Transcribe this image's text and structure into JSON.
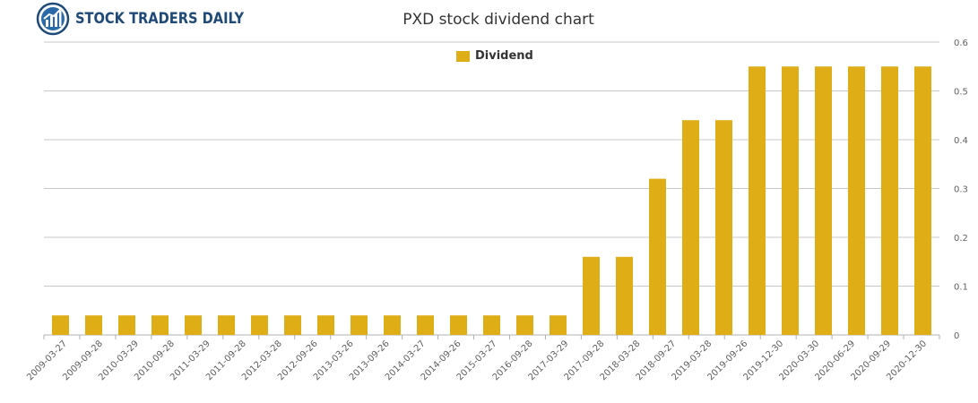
{
  "brand": {
    "name": "STOCK TRADERS DAILY"
  },
  "colors": {
    "bar": "#dfad16",
    "grid": "#c8c8c8",
    "axis": "#b0b0b0",
    "logo": "#1f4a78"
  },
  "chart_data": {
    "type": "bar",
    "title": "PXD stock dividend chart",
    "xlabel": "",
    "ylabel": "",
    "ylim": [
      0,
      0.6
    ],
    "yticks": [
      "0",
      "0.1",
      "0.2",
      "0.3",
      "0.4",
      "0.5",
      "0.6"
    ],
    "grid": true,
    "legend_position": "top-center",
    "categories": [
      "2009-03-27",
      "2009-09-28",
      "2010-03-29",
      "2010-09-28",
      "2011-03-29",
      "2011-09-28",
      "2012-03-28",
      "2012-09-26",
      "2013-03-26",
      "2013-09-26",
      "2014-03-27",
      "2014-09-26",
      "2015-03-27",
      "2015-09-28",
      "2016-03-29",
      "2016-09-28",
      "2017-03-29",
      "2017-09-28",
      "2018-03-28",
      "2018-09-27",
      "2019-03-28",
      "2019-09-26",
      "2019-12-30",
      "2020-03-30",
      "2020-06-29",
      "2020-09-29",
      "2020-12-30"
    ],
    "xticks": [
      "2009-03-27",
      "2009-09-28",
      "2010-03-29",
      "2010-09-28",
      "2011-03-29",
      "2011-09-28",
      "2012-03-28",
      "2012-09-26",
      "2013-03-26",
      "2013-09-26",
      "2014-03-27",
      "2014-09-26",
      "2015-03-27",
      "2016-09-28",
      "2017-03-29",
      "2017-09-28",
      "2018-03-28",
      "2018-09-27",
      "2019-03-28",
      "2019-09-26",
      "2019-12-30",
      "2020-03-30",
      "2020-06-29",
      "2020-09-29",
      "2020-12-30"
    ],
    "series": [
      {
        "name": "Dividend",
        "values": [
          0.04,
          0.04,
          0.04,
          0.04,
          0.04,
          0.04,
          0.04,
          0.04,
          0.04,
          0.04,
          0.04,
          0.04,
          0.04,
          0.04,
          0.04,
          0.04,
          0.16,
          0.16,
          0.32,
          0.44,
          0.44,
          0.55,
          0.55,
          0.55,
          0.55,
          0.55,
          0.55
        ]
      }
    ]
  }
}
